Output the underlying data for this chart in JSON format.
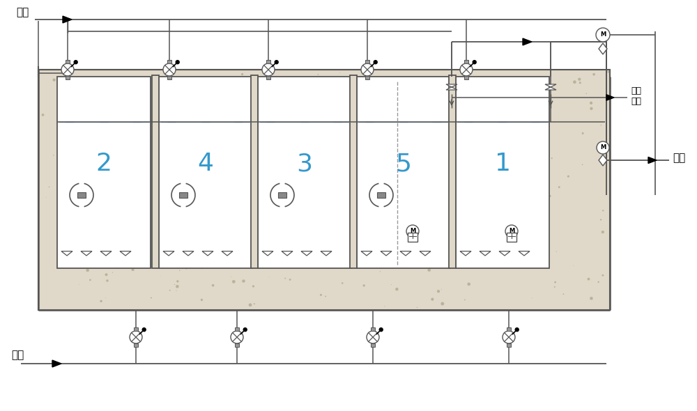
{
  "bg_color": "#ffffff",
  "line_color": "#555555",
  "outer_fill": "#e0d8c8",
  "chamber_fill": "#f8f8f8",
  "tank_number_color": "#3399cc",
  "label_inlet": "进水",
  "label_outlet": "出水",
  "label_air": "空气",
  "label_sludge": "据泥\n排池",
  "tank_numbers": [
    "2",
    "4",
    "3",
    "5",
    "1"
  ],
  "figw": 10.0,
  "figh": 5.9,
  "dpi": 100
}
